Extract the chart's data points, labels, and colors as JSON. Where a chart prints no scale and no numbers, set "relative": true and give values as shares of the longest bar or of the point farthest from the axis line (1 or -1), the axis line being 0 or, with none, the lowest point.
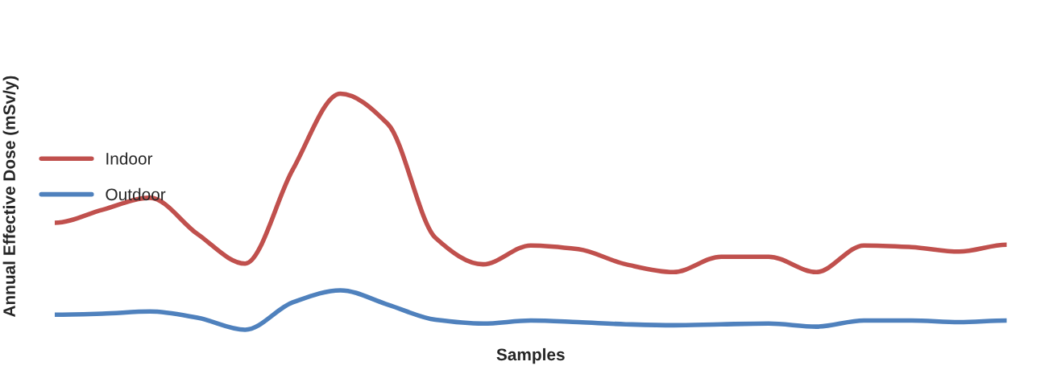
{
  "chart_data": {
    "type": "line",
    "relative": true,
    "xlabel": "Samples",
    "ylabel": "Annual Effective Dose (mSv/y)",
    "legend": "left",
    "grid": false,
    "marker": "none",
    "line_style": "solid",
    "categories": [
      null,
      null,
      null,
      null,
      null,
      null,
      null,
      null,
      null,
      null,
      null,
      null,
      null,
      null,
      null,
      null,
      null,
      null,
      null,
      null,
      null
    ],
    "series": [
      {
        "name": "Indoor",
        "color": "#c0504d",
        "values": [
          0.453,
          0.508,
          0.559,
          0.405,
          0.28,
          0.678,
          1.0,
          0.871,
          0.389,
          0.277,
          0.357,
          0.341,
          0.277,
          0.244,
          0.309,
          0.309,
          0.244,
          0.357,
          0.35,
          0.331,
          0.36
        ]
      },
      {
        "name": "Outdoor",
        "color": "#4f81bd",
        "values": [
          0.064,
          0.068,
          0.077,
          0.051,
          0.0,
          0.116,
          0.167,
          0.106,
          0.042,
          0.026,
          0.039,
          0.032,
          0.023,
          0.019,
          0.023,
          0.026,
          0.013,
          0.039,
          0.039,
          0.032,
          0.039
        ]
      }
    ]
  }
}
